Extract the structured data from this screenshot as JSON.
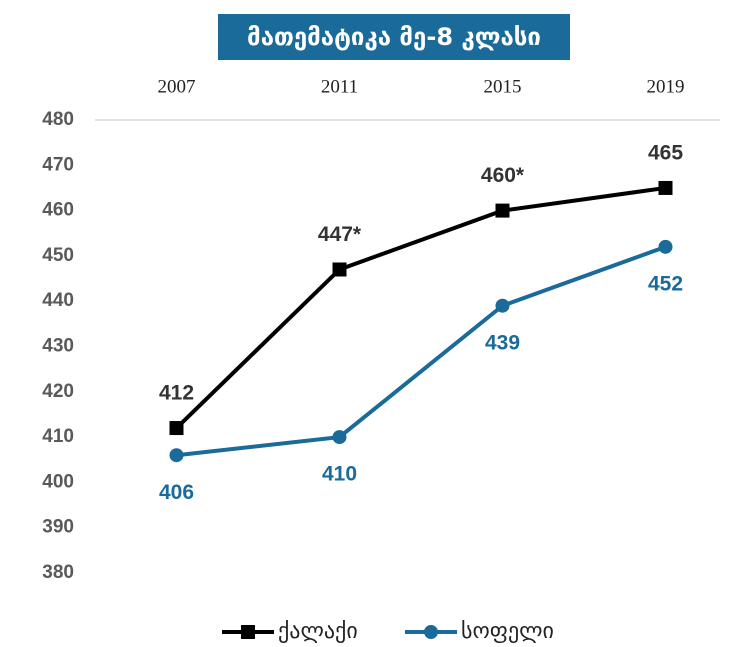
{
  "chart_data": {
    "type": "line",
    "title": "მათემატიკა მე-8 კლასი",
    "categories": [
      "2007",
      "2011",
      "2015",
      "2019"
    ],
    "series": [
      {
        "name": "ქალაქი",
        "color": "#000000",
        "marker": "square",
        "values": [
          412,
          447,
          460,
          465
        ],
        "value_labels": [
          "412",
          "447*",
          "460*",
          "465"
        ],
        "label_position": "above"
      },
      {
        "name": "სოფელი",
        "color": "#1a6a9a",
        "marker": "circle",
        "values": [
          406,
          410,
          439,
          452
        ],
        "label_position": "below"
      }
    ],
    "ylim": [
      380,
      480
    ],
    "yticks": [
      380,
      390,
      400,
      410,
      420,
      430,
      440,
      450,
      460,
      470,
      480
    ],
    "grid": false,
    "legend": "bottom"
  }
}
